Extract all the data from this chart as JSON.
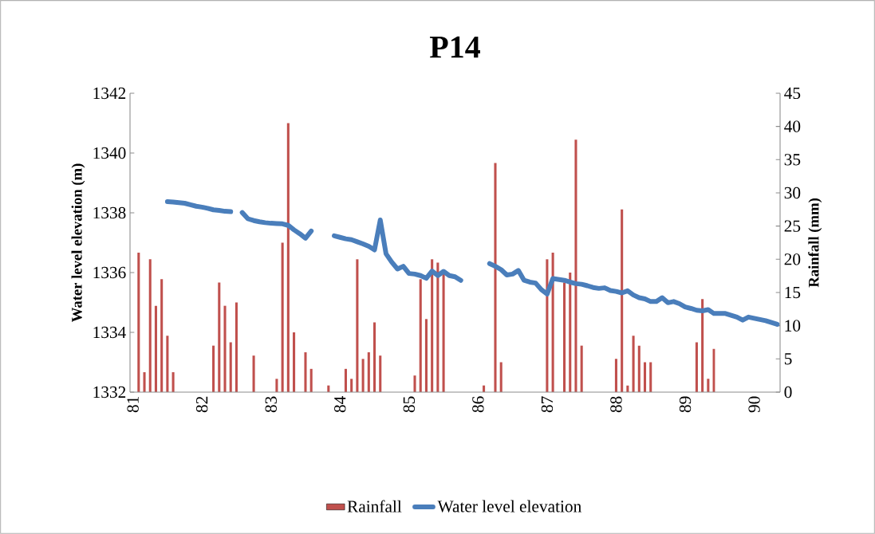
{
  "chart_data": {
    "type": "bar",
    "title": "P14",
    "ylabel": "Water level elevation (m)",
    "y2label": "Rainfall (mm)",
    "categories": [
      "81",
      null,
      null,
      null,
      null,
      null,
      null,
      null,
      null,
      null,
      null,
      null,
      "82",
      null,
      null,
      null,
      null,
      null,
      null,
      null,
      null,
      null,
      null,
      null,
      "83",
      null,
      null,
      null,
      null,
      null,
      null,
      null,
      null,
      null,
      null,
      null,
      "84",
      null,
      null,
      null,
      null,
      null,
      null,
      null,
      null,
      null,
      null,
      null,
      "85",
      null,
      null,
      null,
      null,
      null,
      null,
      null,
      null,
      null,
      null,
      null,
      "86",
      null,
      null,
      null,
      null,
      null,
      null,
      null,
      null,
      null,
      null,
      null,
      "87",
      null,
      null,
      null,
      null,
      null,
      null,
      null,
      null,
      null,
      null,
      null,
      "88",
      null,
      null,
      null,
      null,
      null,
      null,
      null,
      null,
      null,
      null,
      null,
      "89",
      null,
      null,
      null,
      null,
      null,
      null,
      null,
      null,
      null,
      null,
      null,
      "90",
      null,
      null,
      null,
      null
    ],
    "ylim": [
      1332,
      1342
    ],
    "yticks": [
      1332,
      1334,
      1336,
      1338,
      1340,
      1342
    ],
    "y2lim": [
      0,
      45
    ],
    "y2ticks": [
      0,
      5,
      10,
      15,
      20,
      25,
      30,
      35,
      40,
      45
    ],
    "legend": "bottom",
    "series": [
      {
        "name": "Rainfall",
        "axis": "y2",
        "color": "#c0504d",
        "values": [
          null,
          21,
          3,
          20,
          13,
          17,
          8.5,
          3,
          null,
          null,
          null,
          null,
          null,
          null,
          7,
          16.5,
          13,
          7.5,
          13.5,
          null,
          null,
          5.5,
          null,
          null,
          null,
          2,
          22.5,
          40.5,
          9,
          null,
          6,
          3.5,
          null,
          null,
          1,
          null,
          null,
          3.5,
          2,
          20,
          5,
          6,
          10.5,
          5.5,
          null,
          null,
          null,
          null,
          null,
          2.5,
          17,
          11,
          20,
          19.5,
          18,
          null,
          null,
          null,
          null,
          null,
          null,
          1,
          null,
          34.5,
          4.5,
          null,
          null,
          null,
          null,
          null,
          null,
          null,
          20,
          21,
          null,
          16.5,
          18,
          38,
          7,
          null,
          null,
          null,
          null,
          null,
          5,
          27.5,
          1,
          8.5,
          7,
          4.5,
          4.5,
          null,
          null,
          null,
          null,
          null,
          null,
          null,
          7.5,
          14,
          2,
          6.5,
          null,
          null,
          null,
          null,
          null,
          null,
          null,
          null,
          null,
          null,
          null
        ]
      },
      {
        "name": "Water level elevation",
        "type": "line",
        "color": "#4a7ebb",
        "values": [
          null,
          null,
          null,
          null,
          null,
          null,
          1338.37,
          1338.36,
          1338.34,
          1338.32,
          1338.27,
          1338.22,
          1338.19,
          1338.15,
          1338.1,
          1338.08,
          1338.05,
          1338.04,
          null,
          1338.01,
          1337.8,
          1337.74,
          1337.7,
          1337.67,
          1337.65,
          1337.64,
          1337.63,
          1337.58,
          1337.43,
          1337.3,
          1337.15,
          1337.39,
          null,
          null,
          null,
          1337.23,
          1337.18,
          1337.13,
          1337.1,
          1337.03,
          1336.96,
          1336.88,
          1336.76,
          1337.76,
          1336.63,
          1336.35,
          1336.12,
          1336.21,
          1335.97,
          1335.95,
          1335.9,
          1335.81,
          1336.05,
          1335.9,
          1336.04,
          1335.9,
          1335.86,
          1335.74,
          null,
          null,
          null,
          null,
          1336.3,
          1336.21,
          1336.1,
          1335.92,
          1335.95,
          1336.07,
          1335.74,
          1335.68,
          1335.65,
          1335.43,
          1335.28,
          1335.8,
          1335.77,
          1335.74,
          1335.68,
          1335.63,
          1335.61,
          1335.56,
          1335.5,
          1335.47,
          1335.49,
          1335.4,
          1335.37,
          1335.32,
          1335.39,
          1335.25,
          1335.16,
          1335.12,
          1335.03,
          1335.03,
          1335.16,
          1334.99,
          1335.03,
          1334.96,
          1334.85,
          1334.8,
          1334.74,
          1334.72,
          1334.76,
          1334.63,
          1334.63,
          1334.63,
          1334.57,
          1334.51,
          1334.41,
          1334.51,
          1334.47,
          1334.43,
          1334.39,
          1334.33,
          1334.27
        ]
      }
    ]
  }
}
